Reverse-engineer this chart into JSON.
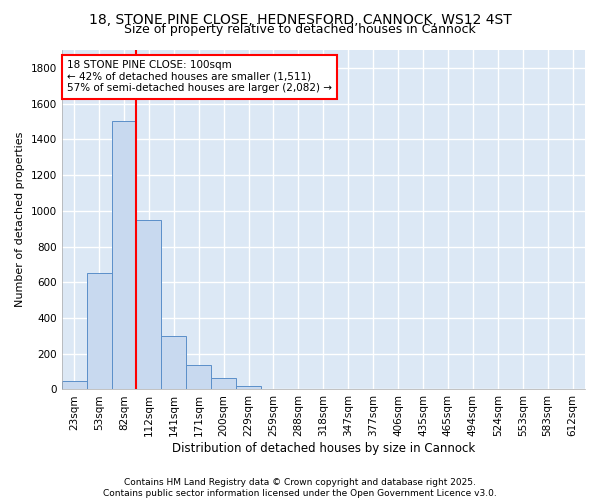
{
  "title1": "18, STONE PINE CLOSE, HEDNESFORD, CANNOCK, WS12 4ST",
  "title2": "Size of property relative to detached houses in Cannock",
  "xlabel": "Distribution of detached houses by size in Cannock",
  "ylabel": "Number of detached properties",
  "categories": [
    "23sqm",
    "53sqm",
    "82sqm",
    "112sqm",
    "141sqm",
    "171sqm",
    "200sqm",
    "229sqm",
    "259sqm",
    "288sqm",
    "318sqm",
    "347sqm",
    "377sqm",
    "406sqm",
    "435sqm",
    "465sqm",
    "494sqm",
    "524sqm",
    "553sqm",
    "583sqm",
    "612sqm"
  ],
  "values": [
    45,
    650,
    1500,
    950,
    300,
    135,
    65,
    22,
    5,
    5,
    0,
    0,
    5,
    0,
    0,
    0,
    0,
    0,
    0,
    0,
    0
  ],
  "bar_color": "#c8d9ef",
  "bar_edge_color": "#5b8fc9",
  "vline_x": 2.5,
  "vline_color": "red",
  "annotation_text": "18 STONE PINE CLOSE: 100sqm\n← 42% of detached houses are smaller (1,511)\n57% of semi-detached houses are larger (2,082) →",
  "annotation_box_color": "white",
  "annotation_box_edge_color": "red",
  "ylim": [
    0,
    1900
  ],
  "yticks": [
    0,
    200,
    400,
    600,
    800,
    1000,
    1200,
    1400,
    1600,
    1800
  ],
  "bg_color": "#dce8f5",
  "grid_color": "#c0d0e8",
  "footer_text": "Contains HM Land Registry data © Crown copyright and database right 2025.\nContains public sector information licensed under the Open Government Licence v3.0.",
  "title1_fontsize": 10,
  "title2_fontsize": 9,
  "xlabel_fontsize": 8.5,
  "ylabel_fontsize": 8,
  "tick_fontsize": 7.5,
  "annotation_fontsize": 7.5,
  "footer_fontsize": 6.5
}
